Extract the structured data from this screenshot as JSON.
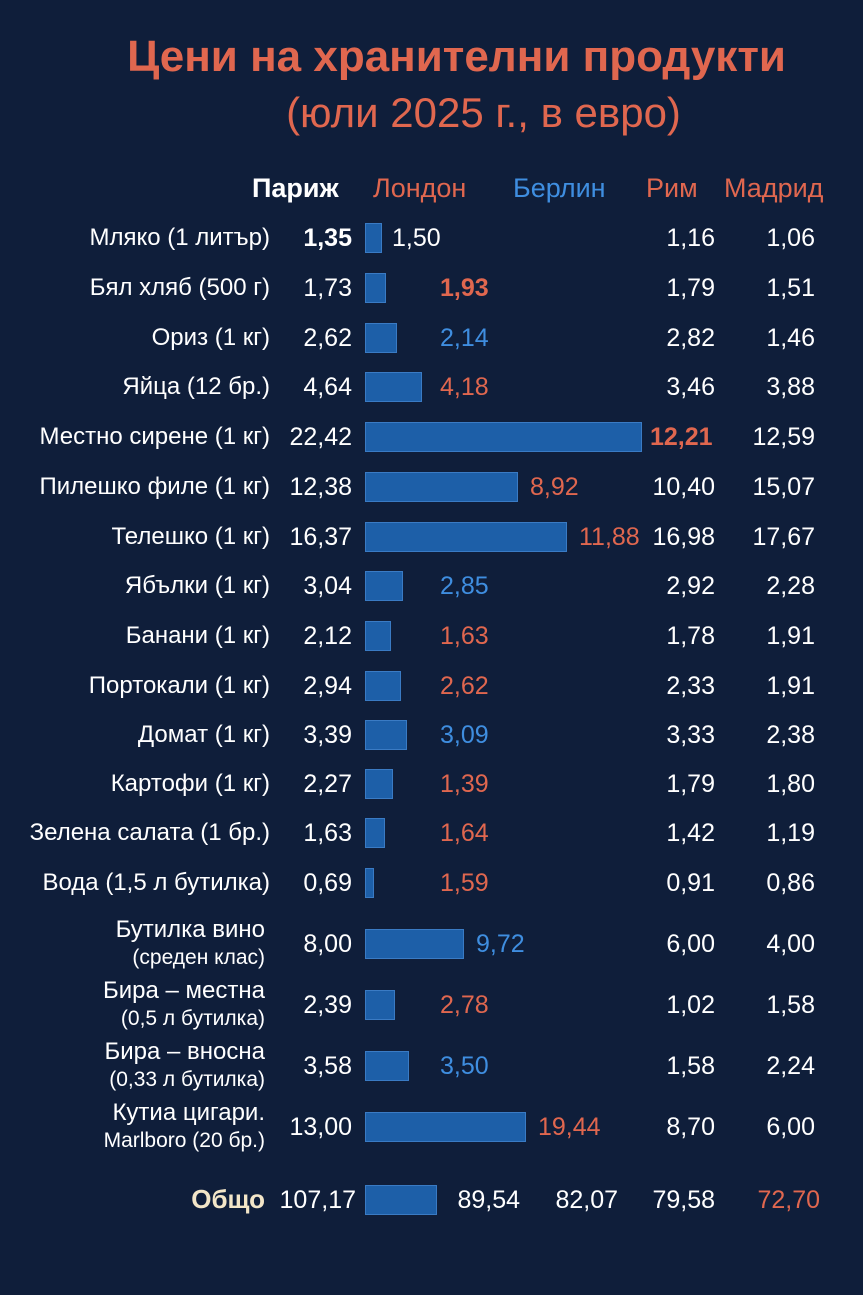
{
  "title_line1": "Цени на хранителни продукти",
  "title_line2": "(юли 2025 г., в евро)",
  "colors": {
    "background": "#0f1e3a",
    "title": "#e0674f",
    "orange": "#e0674f",
    "blue": "#3f8ee0",
    "bar": "#1d5fa8",
    "white": "#ffffff"
  },
  "chart_data": {
    "type": "table",
    "columns": [
      "Париж",
      "Лондон",
      "Берлин",
      "Рим",
      "Мадрид"
    ],
    "rows": [
      {
        "label": [
          "Мляко (1 литър)"
        ],
        "values": [
          "1,35",
          "1,50",
          "1,16",
          "1,06"
        ],
        "bar": 1.35,
        "second_color": "white",
        "bold": [
          true,
          false
        ]
      },
      {
        "label": [
          "Бял хляб (500 г)"
        ],
        "values": [
          "1,73",
          "1,93",
          "1,79",
          "1,51"
        ],
        "bar": 1.73,
        "second_color": "orange",
        "bold": [
          false,
          true
        ]
      },
      {
        "label": [
          "Ориз (1 кг)"
        ],
        "values": [
          "2,62",
          "2,14",
          "2,82",
          "1,46"
        ],
        "bar": 2.62,
        "second_color": "blue",
        "bold": [
          false,
          false
        ]
      },
      {
        "label": [
          "Яйца (12 бр.)"
        ],
        "values": [
          "4,64",
          "4,18",
          "3,46",
          "3,88"
        ],
        "bar": 4.64,
        "second_color": "orange",
        "bold": [
          false,
          false
        ]
      },
      {
        "label": [
          "Местно сирене (1 кг)"
        ],
        "values": [
          "22,42",
          "12,21",
          "12,59"
        ],
        "bar": 22.42,
        "second_color": "orange",
        "bold": [
          false,
          true
        ],
        "three_values": true
      },
      {
        "label": [
          "Пилешко филе (1 кг)"
        ],
        "values": [
          "12,38",
          "8,92",
          "10,40",
          "15,07"
        ],
        "bar": 12.38,
        "second_color": "orange",
        "bold": [
          false,
          false
        ]
      },
      {
        "label": [
          "Телешко (1 кг)"
        ],
        "values": [
          "16,37",
          "11,88",
          "16,98",
          "17,67"
        ],
        "bar": 16.37,
        "second_color": "orange",
        "bold": [
          false,
          false
        ]
      },
      {
        "label": [
          "Ябълки (1 кг)"
        ],
        "values": [
          "3,04",
          "2,85",
          "2,92",
          "2,28"
        ],
        "bar": 3.04,
        "second_color": "blue",
        "bold": [
          false,
          false
        ]
      },
      {
        "label": [
          "Банани (1 кг)"
        ],
        "values": [
          "2,12",
          "1,63",
          "1,78",
          "1,91"
        ],
        "bar": 2.12,
        "second_color": "orange",
        "bold": [
          false,
          false
        ]
      },
      {
        "label": [
          "Портокали (1 кг)"
        ],
        "values": [
          "2,94",
          "2,62",
          "2,33",
          "1,91"
        ],
        "bar": 2.94,
        "second_color": "orange",
        "bold": [
          false,
          false
        ]
      },
      {
        "label": [
          "Домат (1 кг)"
        ],
        "values": [
          "3,39",
          "3,09",
          "3,33",
          "2,38"
        ],
        "bar": 3.39,
        "second_color": "blue",
        "bold": [
          false,
          false
        ]
      },
      {
        "label": [
          "Картофи (1 кг)"
        ],
        "values": [
          "2,27",
          "1,39",
          "1,79",
          "1,80"
        ],
        "bar": 2.27,
        "second_color": "orange",
        "bold": [
          false,
          false
        ]
      },
      {
        "label": [
          "Зелена салата (1 бр.)"
        ],
        "values": [
          "1,63",
          "1,64",
          "1,42",
          "1,19"
        ],
        "bar": 1.63,
        "second_color": "orange",
        "bold": [
          false,
          false
        ]
      },
      {
        "label": [
          "Вода (1,5 л бутилка)"
        ],
        "values": [
          "0,69",
          "1,59",
          "0,91",
          "0,86"
        ],
        "bar": 0.69,
        "second_color": "orange",
        "bold": [
          false,
          false
        ]
      },
      {
        "label": [
          "Бутилка вино",
          "(среден клас)"
        ],
        "values": [
          "8,00",
          "9,72",
          "6,00",
          "4,00"
        ],
        "bar": 8.0,
        "second_color": "blue",
        "bold": [
          false,
          false
        ]
      },
      {
        "label": [
          "Бира – местна",
          "(0,5 л бутилка)"
        ],
        "values": [
          "2,39",
          "2,78",
          "1,02",
          "1,58"
        ],
        "bar": 2.39,
        "second_color": "orange",
        "bold": [
          false,
          false
        ]
      },
      {
        "label": [
          "Бира – вносна",
          "(0,33 л бутилка)"
        ],
        "values": [
          "3,58",
          "3,50",
          "1,58",
          "2,24"
        ],
        "bar": 3.58,
        "second_color": "blue",
        "bold": [
          false,
          false
        ]
      },
      {
        "label": [
          "Кутиа цигари.",
          "Marlboro (20 бр.)"
        ],
        "values": [
          "13,00",
          "19,44",
          "8,70",
          "6,00"
        ],
        "bar": 13.0,
        "second_color": "orange",
        "bold": [
          false,
          false
        ]
      }
    ],
    "total": {
      "label": "Общо",
      "values": [
        "107,17",
        "89,54",
        "82,07",
        "79,58",
        "72,70"
      ],
      "bar": 107.17
    }
  }
}
